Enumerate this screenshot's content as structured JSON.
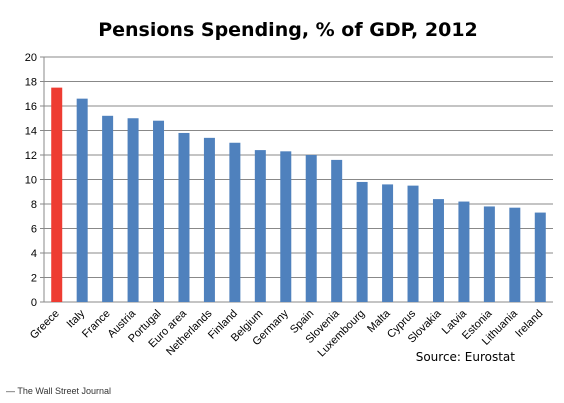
{
  "chart_data": {
    "type": "bar",
    "title": "Pensions Spending, % of GDP, 2012",
    "xlabel": "",
    "ylabel": "",
    "ylim": [
      0,
      20
    ],
    "yticks": [
      0,
      2,
      4,
      6,
      8,
      10,
      12,
      14,
      16,
      18,
      20
    ],
    "grid": true,
    "legend": "none",
    "categories": [
      "Greece",
      "Italy",
      "France",
      "Austria",
      "Portugal",
      "Euro area",
      "Netherlands",
      "Finland",
      "Belgium",
      "Germany",
      "Spain",
      "Slovenia",
      "Luxembourg",
      "Malta",
      "Cyprus",
      "Slovakia",
      "Latvia",
      "Estonia",
      "Lithuania",
      "Ireland"
    ],
    "values": [
      17.5,
      16.6,
      15.2,
      15.0,
      14.8,
      13.8,
      13.4,
      13.0,
      12.4,
      12.3,
      12.0,
      11.6,
      9.8,
      9.6,
      9.5,
      8.4,
      8.2,
      7.8,
      7.7,
      7.3
    ],
    "colors": {
      "highlight": "#ee3c32",
      "default": "#4f81bd",
      "highlight_index": 0
    },
    "source": "Source: Eurostat"
  },
  "credit": "— The Wall Street Journal"
}
